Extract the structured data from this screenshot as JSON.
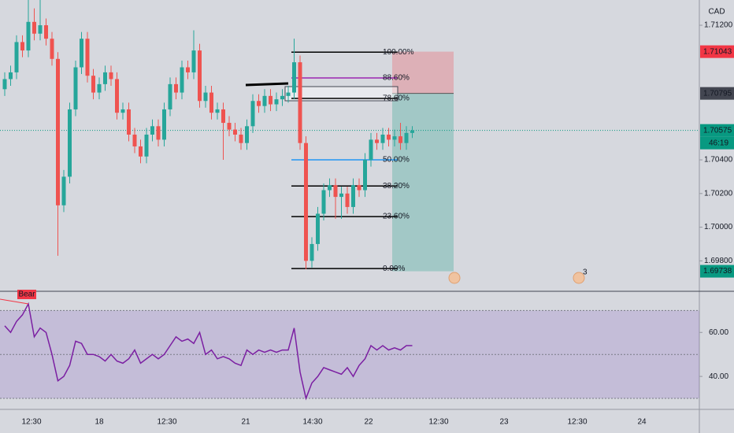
{
  "chart_data": {
    "type": "candlestick",
    "currency": "CAD",
    "up_color": "#26a69a",
    "down_color": "#ef5350",
    "open": [
      1.7082,
      1.7088,
      1.7092,
      1.711,
      1.7105,
      1.7122,
      1.7115,
      1.712,
      1.7112,
      1.71,
      1.7013,
      1.703,
      1.707,
      1.7095,
      1.7112,
      1.709,
      1.708,
      1.7085,
      1.7092,
      1.7088,
      1.7068,
      1.707,
      1.7055,
      1.7048,
      1.7042,
      1.7055,
      1.706,
      1.7052,
      1.707,
      1.7085,
      1.708,
      1.7095,
      1.7092,
      1.7105,
      1.7075,
      1.708,
      1.7068,
      1.707,
      1.7062,
      1.7058,
      1.7055,
      1.705,
      1.706,
      1.7075,
      1.7072,
      1.7078,
      1.7073,
      1.7076,
      1.7078,
      1.708,
      1.7098,
      1.705,
      1.698,
      1.699,
      1.7008,
      1.7022,
      1.7025,
      1.7018,
      1.702,
      1.7012,
      1.7025,
      1.7022,
      1.704,
      1.7052,
      1.705,
      1.7055,
      1.7052,
      1.7054,
      1.705,
      1.7056
    ],
    "high": [
      1.7092,
      1.7096,
      1.7114,
      1.7114,
      1.7135,
      1.713,
      1.7135,
      1.7124,
      1.7116,
      1.7104,
      1.7034,
      1.7074,
      1.7099,
      1.7116,
      1.7116,
      1.7094,
      1.7089,
      1.7096,
      1.7096,
      1.7092,
      1.7074,
      1.7074,
      1.7059,
      1.7052,
      1.7059,
      1.7064,
      1.7064,
      1.7074,
      1.7089,
      1.7089,
      1.7099,
      1.7099,
      1.7117,
      1.7109,
      1.7084,
      1.7084,
      1.7074,
      1.7074,
      1.7066,
      1.7062,
      1.7059,
      1.7064,
      1.7079,
      1.7079,
      1.7082,
      1.7082,
      1.708,
      1.7082,
      1.7084,
      1.7112,
      1.7102,
      1.7054,
      1.6994,
      1.7012,
      1.7026,
      1.7029,
      1.7029,
      1.7024,
      1.7024,
      1.7029,
      1.7029,
      1.7044,
      1.7056,
      1.7056,
      1.7059,
      1.7059,
      1.7058,
      1.7062,
      1.706,
      1.706
    ],
    "low": [
      1.7078,
      1.7084,
      1.7088,
      1.7101,
      1.7101,
      1.7111,
      1.7111,
      1.7108,
      1.7096,
      1.6983,
      1.7009,
      1.7026,
      1.7066,
      1.7091,
      1.7086,
      1.7076,
      1.7076,
      1.7081,
      1.7084,
      1.7064,
      1.7064,
      1.7051,
      1.7044,
      1.7038,
      1.7038,
      1.7051,
      1.7048,
      1.7048,
      1.7066,
      1.7076,
      1.7076,
      1.7088,
      1.7088,
      1.7071,
      1.7071,
      1.7064,
      1.7064,
      1.704,
      1.7054,
      1.7051,
      1.7046,
      1.7046,
      1.7056,
      1.7068,
      1.7068,
      1.7069,
      1.7069,
      1.7072,
      1.7074,
      1.7076,
      1.7046,
      1.6975,
      1.6976,
      1.6986,
      1.7004,
      1.7018,
      1.7005,
      1.7005,
      1.7008,
      1.7008,
      1.7018,
      1.7018,
      1.7036,
      1.7046,
      1.7046,
      1.7048,
      1.7048,
      1.7046,
      1.7046,
      1.7053
    ],
    "close": [
      1.7088,
      1.7092,
      1.711,
      1.7105,
      1.7122,
      1.7115,
      1.712,
      1.7112,
      1.71,
      1.7013,
      1.703,
      1.707,
      1.7095,
      1.7112,
      1.709,
      1.708,
      1.7085,
      1.7092,
      1.7088,
      1.7068,
      1.707,
      1.7055,
      1.7048,
      1.7042,
      1.7055,
      1.706,
      1.7052,
      1.707,
      1.7085,
      1.708,
      1.7095,
      1.7092,
      1.7105,
      1.7075,
      1.708,
      1.7068,
      1.707,
      1.7062,
      1.7058,
      1.7055,
      1.705,
      1.706,
      1.7075,
      1.7072,
      1.7078,
      1.7073,
      1.7076,
      1.7078,
      1.708,
      1.7098,
      1.705,
      1.698,
      1.699,
      1.7008,
      1.7022,
      1.7025,
      1.7018,
      1.702,
      1.7012,
      1.7025,
      1.7022,
      1.704,
      1.7052,
      1.705,
      1.7055,
      1.7052,
      1.7054,
      1.705,
      1.7056,
      1.70575
    ],
    "ylim": [
      1.69619,
      1.7135
    ],
    "yticks": [
      {
        "value": 1.712,
        "label": "1.71200"
      },
      {
        "value": 1.704,
        "label": "1.70400"
      },
      {
        "value": 1.702,
        "label": "1.70200"
      },
      {
        "value": 1.7,
        "label": "1.70000"
      },
      {
        "value": 1.698,
        "label": "1.69800"
      }
    ],
    "countdown": "46:19",
    "xtick_labels": [
      "12:30",
      "18",
      "12:30",
      "21",
      "14:30",
      "22",
      "12:30",
      "23",
      "12:30",
      "24"
    ],
    "fib_levels": [
      {
        "label": "100.00%",
        "value": 1.7104,
        "color": "#000000"
      },
      {
        "label": "88.60%",
        "value": 1.70887,
        "color": "#9c27b0"
      },
      {
        "label": "78.60%",
        "value": 1.70765,
        "color": "#000000"
      },
      {
        "label": "50.00%",
        "value": 1.704,
        "color": "#2196f3"
      },
      {
        "label": "38.20%",
        "value": 1.70245,
        "color": "#000000"
      },
      {
        "label": "23.60%",
        "value": 1.70063,
        "color": "#000000"
      },
      {
        "label": "0.00%",
        "value": 1.69754,
        "color": "#000000"
      }
    ],
    "position": {
      "stop": 1.71043,
      "entry": 1.70795,
      "target": 1.69738
    },
    "event_count": "3",
    "rsi": {
      "color": "#7b1fa2",
      "signal": "Bear",
      "values": [
        63,
        60,
        65,
        68,
        73,
        58,
        62,
        60,
        50,
        38,
        40,
        45,
        56,
        55,
        50,
        50,
        49,
        47,
        50,
        47,
        46,
        48,
        52,
        46,
        48,
        50,
        48,
        50,
        54,
        58,
        56,
        57,
        55,
        60,
        50,
        52,
        48,
        49,
        48,
        46,
        45,
        52,
        50,
        52,
        51,
        52,
        51,
        52,
        52,
        62,
        42,
        30,
        37,
        40,
        44,
        43,
        42,
        41,
        44,
        40,
        45,
        48,
        54,
        52,
        54,
        52,
        53,
        52,
        54,
        54
      ],
      "ylim": [
        25,
        78
      ],
      "yticks": [
        {
          "value": 60,
          "label": "60.00"
        },
        {
          "value": 40,
          "label": "40.00"
        }
      ],
      "bands": [
        70,
        50,
        30
      ]
    }
  }
}
